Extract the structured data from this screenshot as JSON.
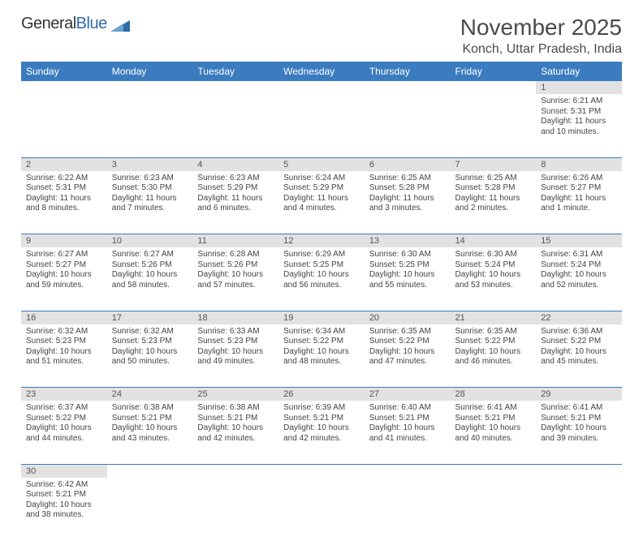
{
  "brand": {
    "part1": "General",
    "part2": "Blue"
  },
  "title": "November 2025",
  "location": "Konch, Uttar Pradesh, India",
  "colors": {
    "header_bg": "#3a7cbf",
    "header_fg": "#ffffff",
    "daynum_bg": "#e2e2e2",
    "rule": "#3a7cbf"
  },
  "weekdays": [
    "Sunday",
    "Monday",
    "Tuesday",
    "Wednesday",
    "Thursday",
    "Friday",
    "Saturday"
  ],
  "weeks": [
    [
      null,
      null,
      null,
      null,
      null,
      null,
      {
        "n": "1",
        "sr": "6:21 AM",
        "ss": "5:31 PM",
        "dl": "11 hours and 10 minutes."
      }
    ],
    [
      {
        "n": "2",
        "sr": "6:22 AM",
        "ss": "5:31 PM",
        "dl": "11 hours and 8 minutes."
      },
      {
        "n": "3",
        "sr": "6:23 AM",
        "ss": "5:30 PM",
        "dl": "11 hours and 7 minutes."
      },
      {
        "n": "4",
        "sr": "6:23 AM",
        "ss": "5:29 PM",
        "dl": "11 hours and 6 minutes."
      },
      {
        "n": "5",
        "sr": "6:24 AM",
        "ss": "5:29 PM",
        "dl": "11 hours and 4 minutes."
      },
      {
        "n": "6",
        "sr": "6:25 AM",
        "ss": "5:28 PM",
        "dl": "11 hours and 3 minutes."
      },
      {
        "n": "7",
        "sr": "6:25 AM",
        "ss": "5:28 PM",
        "dl": "11 hours and 2 minutes."
      },
      {
        "n": "8",
        "sr": "6:26 AM",
        "ss": "5:27 PM",
        "dl": "11 hours and 1 minute."
      }
    ],
    [
      {
        "n": "9",
        "sr": "6:27 AM",
        "ss": "5:27 PM",
        "dl": "10 hours and 59 minutes."
      },
      {
        "n": "10",
        "sr": "6:27 AM",
        "ss": "5:26 PM",
        "dl": "10 hours and 58 minutes."
      },
      {
        "n": "11",
        "sr": "6:28 AM",
        "ss": "5:26 PM",
        "dl": "10 hours and 57 minutes."
      },
      {
        "n": "12",
        "sr": "6:29 AM",
        "ss": "5:25 PM",
        "dl": "10 hours and 56 minutes."
      },
      {
        "n": "13",
        "sr": "6:30 AM",
        "ss": "5:25 PM",
        "dl": "10 hours and 55 minutes."
      },
      {
        "n": "14",
        "sr": "6:30 AM",
        "ss": "5:24 PM",
        "dl": "10 hours and 53 minutes."
      },
      {
        "n": "15",
        "sr": "6:31 AM",
        "ss": "5:24 PM",
        "dl": "10 hours and 52 minutes."
      }
    ],
    [
      {
        "n": "16",
        "sr": "6:32 AM",
        "ss": "5:23 PM",
        "dl": "10 hours and 51 minutes."
      },
      {
        "n": "17",
        "sr": "6:32 AM",
        "ss": "5:23 PM",
        "dl": "10 hours and 50 minutes."
      },
      {
        "n": "18",
        "sr": "6:33 AM",
        "ss": "5:23 PM",
        "dl": "10 hours and 49 minutes."
      },
      {
        "n": "19",
        "sr": "6:34 AM",
        "ss": "5:22 PM",
        "dl": "10 hours and 48 minutes."
      },
      {
        "n": "20",
        "sr": "6:35 AM",
        "ss": "5:22 PM",
        "dl": "10 hours and 47 minutes."
      },
      {
        "n": "21",
        "sr": "6:35 AM",
        "ss": "5:22 PM",
        "dl": "10 hours and 46 minutes."
      },
      {
        "n": "22",
        "sr": "6:36 AM",
        "ss": "5:22 PM",
        "dl": "10 hours and 45 minutes."
      }
    ],
    [
      {
        "n": "23",
        "sr": "6:37 AM",
        "ss": "5:22 PM",
        "dl": "10 hours and 44 minutes."
      },
      {
        "n": "24",
        "sr": "6:38 AM",
        "ss": "5:21 PM",
        "dl": "10 hours and 43 minutes."
      },
      {
        "n": "25",
        "sr": "6:38 AM",
        "ss": "5:21 PM",
        "dl": "10 hours and 42 minutes."
      },
      {
        "n": "26",
        "sr": "6:39 AM",
        "ss": "5:21 PM",
        "dl": "10 hours and 42 minutes."
      },
      {
        "n": "27",
        "sr": "6:40 AM",
        "ss": "5:21 PM",
        "dl": "10 hours and 41 minutes."
      },
      {
        "n": "28",
        "sr": "6:41 AM",
        "ss": "5:21 PM",
        "dl": "10 hours and 40 minutes."
      },
      {
        "n": "29",
        "sr": "6:41 AM",
        "ss": "5:21 PM",
        "dl": "10 hours and 39 minutes."
      }
    ],
    [
      {
        "n": "30",
        "sr": "6:42 AM",
        "ss": "5:21 PM",
        "dl": "10 hours and 38 minutes."
      },
      null,
      null,
      null,
      null,
      null,
      null
    ]
  ],
  "labels": {
    "sunrise": "Sunrise: ",
    "sunset": "Sunset: ",
    "daylight": "Daylight: "
  }
}
